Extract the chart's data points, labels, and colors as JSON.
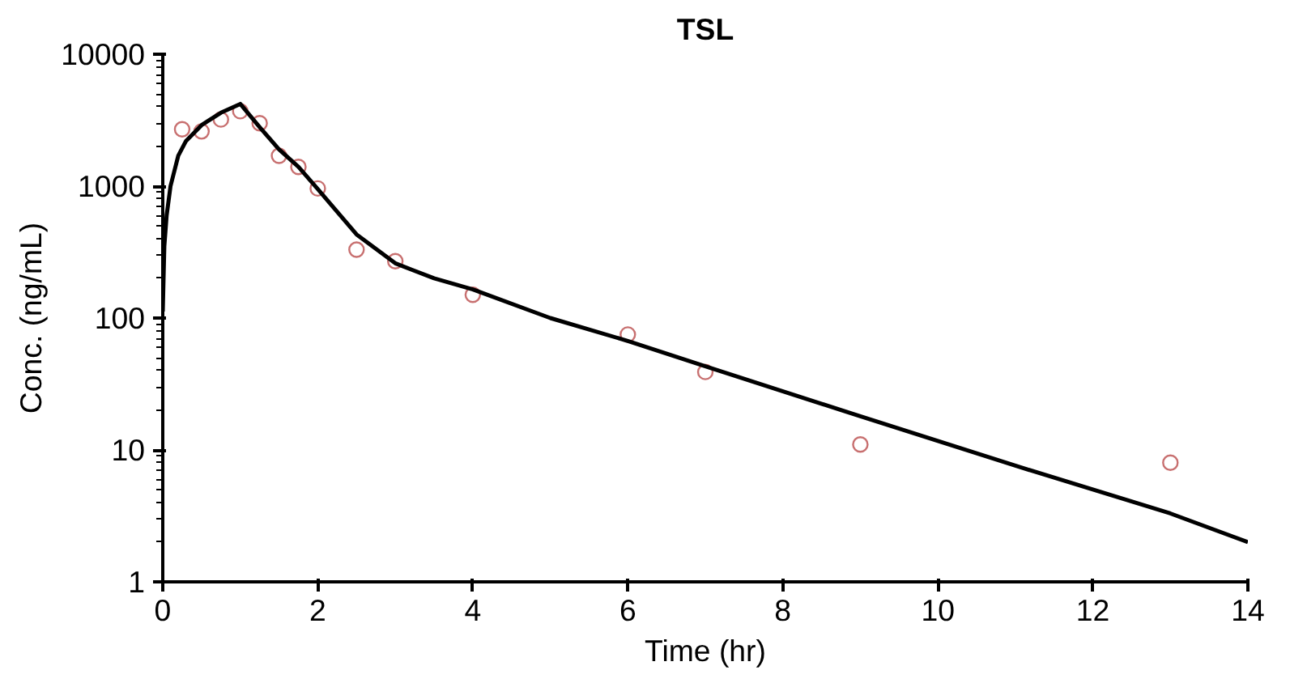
{
  "chart_data": {
    "type": "scatter",
    "title": "TSL",
    "xlabel": "Time (hr)",
    "ylabel": "Conc. (ng/mL)",
    "log": "y",
    "grid": false,
    "xlim": [
      0,
      14
    ],
    "ylim": [
      1,
      10000
    ],
    "xticks": [
      0,
      2,
      4,
      6,
      8,
      10,
      12,
      14
    ],
    "yticks": [
      1,
      10,
      100,
      1000,
      10000
    ],
    "series": [
      {
        "marker": "circle",
        "color": "#c87070",
        "x": [
          0.25,
          0.5,
          0.75,
          1,
          1.25,
          1.5,
          1.75,
          2,
          2.5,
          3,
          4,
          6,
          7,
          9,
          13
        ],
        "values": [
          2700,
          2600,
          3200,
          3700,
          3000,
          1700,
          1400,
          960,
          330,
          270,
          150,
          75,
          39,
          11,
          8
        ]
      },
      {
        "type": "line",
        "marker": "none",
        "line_style": "solid",
        "color": "#000000",
        "x": [
          0,
          0.02,
          0.05,
          0.1,
          0.2,
          0.3,
          0.5,
          0.75,
          1,
          1.25,
          1.5,
          1.75,
          2,
          2.5,
          3,
          3.5,
          4,
          5,
          6,
          7,
          9,
          11,
          13,
          14
        ],
        "values": [
          112,
          350,
          600,
          1000,
          1700,
          2200,
          2900,
          3600,
          4200,
          2800,
          1900,
          1400,
          950,
          430,
          260,
          200,
          165,
          100,
          67,
          43,
          18,
          7.6,
          3.3,
          2
        ]
      }
    ]
  }
}
